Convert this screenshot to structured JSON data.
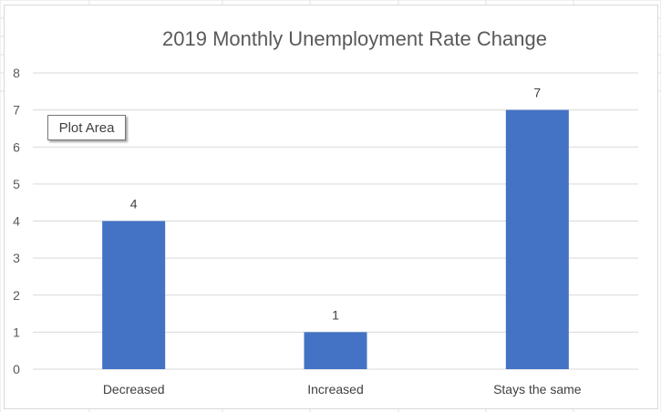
{
  "chart_data": {
    "type": "bar",
    "title": "2019 Monthly Unemployment Rate Change",
    "categories": [
      "Decreased",
      "Increased",
      "Stays the same"
    ],
    "values": [
      4,
      1,
      7
    ],
    "ylim": [
      0,
      8
    ],
    "yticks": [
      0,
      1,
      2,
      3,
      4,
      5,
      6,
      7,
      8
    ],
    "xlabel": "",
    "ylabel": "",
    "grid": true,
    "data_labels": true,
    "bar_color": "#4472c4",
    "gridline_color": "#d9d9d9"
  },
  "tooltip": {
    "text": "Plot Area"
  }
}
